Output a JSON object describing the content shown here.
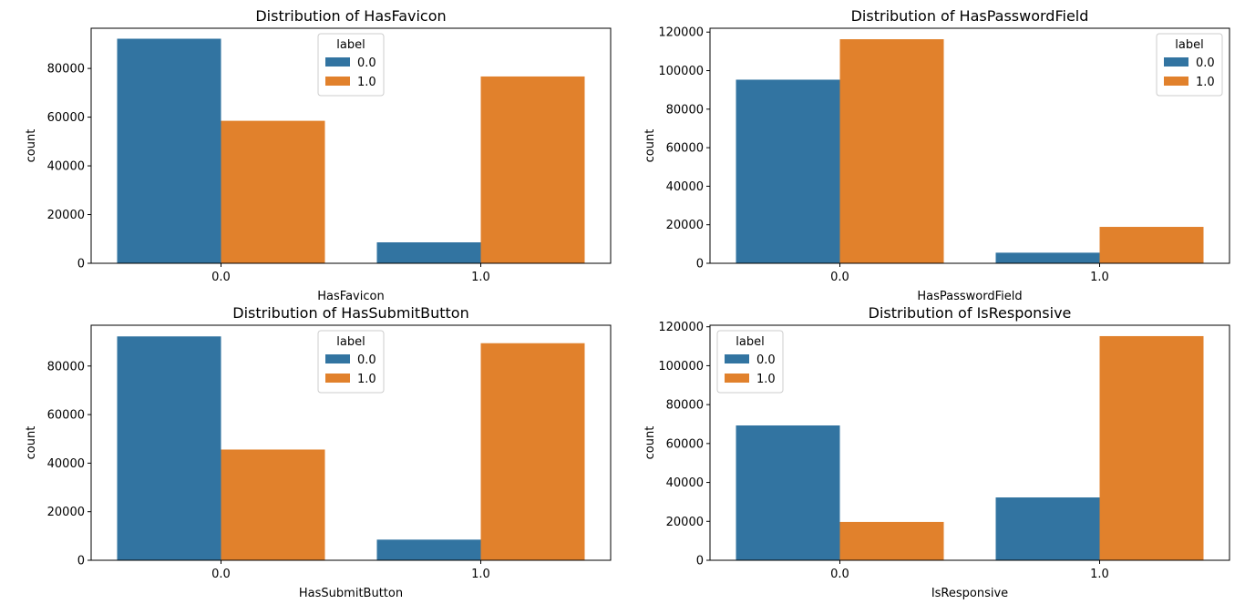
{
  "chart_data": [
    {
      "type": "bar",
      "title": "Distribution of HasFavicon",
      "xlabel": "HasFavicon",
      "ylabel": "count",
      "categories": [
        "0.0",
        "1.0"
      ],
      "ylim": [
        0,
        96500
      ],
      "yticks": [
        0,
        20000,
        40000,
        60000,
        80000
      ],
      "legend": {
        "title": "label",
        "placement": "upper-center"
      },
      "series": [
        {
          "name": "0.0",
          "color": "#3274a1",
          "values": [
            92200,
            8600
          ]
        },
        {
          "name": "1.0",
          "color": "#e1812c",
          "values": [
            58500,
            76700
          ]
        }
      ]
    },
    {
      "type": "bar",
      "title": "Distribution of HasPasswordField",
      "xlabel": "HasPasswordField",
      "ylabel": "count",
      "categories": [
        "0.0",
        "1.0"
      ],
      "ylim": [
        0,
        122000
      ],
      "yticks": [
        0,
        20000,
        40000,
        60000,
        80000,
        100000,
        120000
      ],
      "legend": {
        "title": "label",
        "placement": "upper-right"
      },
      "series": [
        {
          "name": "0.0",
          "color": "#3274a1",
          "values": [
            95300,
            5500
          ]
        },
        {
          "name": "1.0",
          "color": "#e1812c",
          "values": [
            116300,
            18900
          ]
        }
      ]
    },
    {
      "type": "bar",
      "title": "Distribution of HasSubmitButton",
      "xlabel": "HasSubmitButton",
      "ylabel": "count",
      "categories": [
        "0.0",
        "1.0"
      ],
      "ylim": [
        0,
        96800
      ],
      "yticks": [
        0,
        20000,
        40000,
        60000,
        80000
      ],
      "legend": {
        "title": "label",
        "placement": "upper-center"
      },
      "series": [
        {
          "name": "0.0",
          "color": "#3274a1",
          "values": [
            92200,
            8500
          ]
        },
        {
          "name": "1.0",
          "color": "#e1812c",
          "values": [
            45600,
            89400
          ]
        }
      ]
    },
    {
      "type": "bar",
      "title": "Distribution of IsResponsive",
      "xlabel": "IsResponsive",
      "ylabel": "count",
      "categories": [
        "0.0",
        "1.0"
      ],
      "ylim": [
        0,
        120800
      ],
      "yticks": [
        0,
        20000,
        40000,
        60000,
        80000,
        100000,
        120000
      ],
      "legend": {
        "title": "label",
        "placement": "upper-left"
      },
      "series": [
        {
          "name": "0.0",
          "color": "#3274a1",
          "values": [
            69300,
            32300
          ]
        },
        {
          "name": "1.0",
          "color": "#e1812c",
          "values": [
            19700,
            115200
          ]
        }
      ]
    }
  ]
}
